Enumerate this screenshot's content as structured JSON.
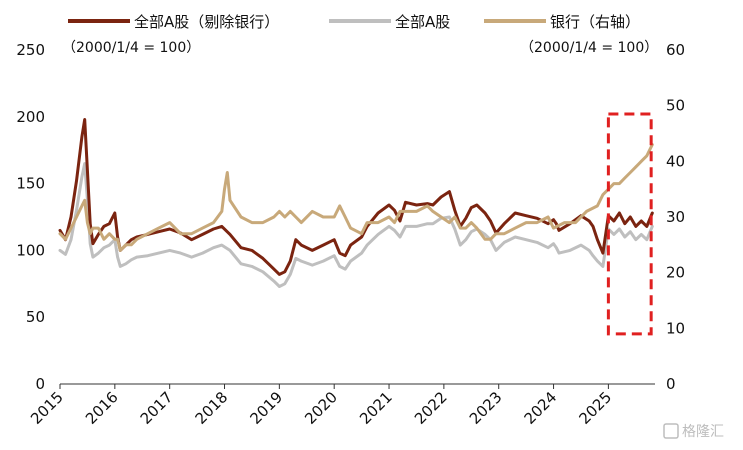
{
  "chart_data": {
    "type": "line",
    "legend": [
      {
        "label": "全部A股（剔除银行）",
        "color": "#7b2410",
        "series": "ex_bank"
      },
      {
        "label": "全部A股",
        "color": "#bfbfbf",
        "series": "all_a"
      },
      {
        "label": "银行（右轴）",
        "color": "#c8a97a",
        "series": "bank"
      }
    ],
    "left_axis": {
      "note": "（2000/1/4 = 100）",
      "ticks": [
        0,
        50,
        100,
        150,
        200,
        250
      ],
      "range": [
        0,
        250
      ]
    },
    "right_axis": {
      "note": "（2000/1/4 = 100）",
      "ticks": [
        0,
        10,
        20,
        30,
        40,
        50,
        60
      ],
      "range": [
        0,
        60
      ]
    },
    "x_axis": {
      "range": [
        2015.0,
        2025.85
      ],
      "ticks": [
        "2015",
        "2016",
        "2017",
        "2018",
        "2019",
        "2020",
        "2021",
        "2022",
        "2023",
        "2024",
        "2025"
      ]
    },
    "highlight": {
      "x_start": 2025.0,
      "x_end": 2025.78,
      "y_start_right": 9,
      "y_end_right": 48.5,
      "color": "#e02020"
    },
    "series": [
      {
        "name": "全部A股（剔除银行）",
        "key": "ex_bank",
        "axis": "left",
        "color": "#7b2410",
        "x": [
          2015.0,
          2015.1,
          2015.2,
          2015.3,
          2015.4,
          2015.45,
          2015.5,
          2015.55,
          2015.6,
          2015.7,
          2015.8,
          2015.9,
          2016.0,
          2016.05,
          2016.1,
          2016.2,
          2016.3,
          2016.4,
          2016.6,
          2016.8,
          2017.0,
          2017.2,
          2017.4,
          2017.6,
          2017.8,
          2017.95,
          2018.1,
          2018.3,
          2018.5,
          2018.7,
          2018.9,
          2019.0,
          2019.1,
          2019.2,
          2019.3,
          2019.4,
          2019.6,
          2019.8,
          2020.0,
          2020.1,
          2020.2,
          2020.3,
          2020.5,
          2020.6,
          2020.8,
          2021.0,
          2021.1,
          2021.2,
          2021.3,
          2021.5,
          2021.7,
          2021.8,
          2021.95,
          2022.1,
          2022.2,
          2022.3,
          2022.4,
          2022.5,
          2022.6,
          2022.75,
          2022.85,
          2022.95,
          2023.1,
          2023.3,
          2023.5,
          2023.7,
          2023.9,
          2024.0,
          2024.05,
          2024.1,
          2024.3,
          2024.5,
          2024.65,
          2024.72,
          2024.8,
          2024.9,
          2025.0,
          2025.1,
          2025.2,
          2025.3,
          2025.4,
          2025.5,
          2025.6,
          2025.7,
          2025.8
        ],
        "y": [
          115,
          108,
          125,
          152,
          185,
          198,
          160,
          120,
          105,
          112,
          118,
          120,
          128,
          110,
          100,
          104,
          108,
          110,
          112,
          114,
          116,
          113,
          108,
          112,
          116,
          118,
          112,
          102,
          100,
          94,
          86,
          82,
          84,
          92,
          108,
          104,
          100,
          104,
          108,
          98,
          96,
          104,
          110,
          118,
          128,
          134,
          130,
          122,
          136,
          134,
          135,
          134,
          140,
          144,
          130,
          118,
          124,
          132,
          134,
          128,
          122,
          113,
          120,
          128,
          126,
          124,
          120,
          123,
          120,
          115,
          120,
          126,
          122,
          118,
          108,
          98,
          126,
          122,
          128,
          120,
          125,
          118,
          122,
          118,
          128
        ]
      },
      {
        "name": "全部A股",
        "key": "all_a",
        "axis": "left",
        "color": "#bfbfbf",
        "x": [
          2015.0,
          2015.1,
          2015.2,
          2015.3,
          2015.4,
          2015.45,
          2015.5,
          2015.55,
          2015.6,
          2015.7,
          2015.8,
          2015.9,
          2016.0,
          2016.05,
          2016.1,
          2016.2,
          2016.3,
          2016.4,
          2016.6,
          2016.8,
          2017.0,
          2017.2,
          2017.4,
          2017.6,
          2017.8,
          2017.95,
          2018.1,
          2018.3,
          2018.5,
          2018.7,
          2018.9,
          2019.0,
          2019.1,
          2019.2,
          2019.3,
          2019.4,
          2019.6,
          2019.8,
          2020.0,
          2020.1,
          2020.2,
          2020.3,
          2020.5,
          2020.6,
          2020.8,
          2021.0,
          2021.1,
          2021.2,
          2021.3,
          2021.5,
          2021.7,
          2021.8,
          2021.95,
          2022.1,
          2022.2,
          2022.3,
          2022.4,
          2022.5,
          2022.6,
          2022.75,
          2022.85,
          2022.95,
          2023.1,
          2023.3,
          2023.5,
          2023.7,
          2023.9,
          2024.0,
          2024.05,
          2024.1,
          2024.3,
          2024.5,
          2024.65,
          2024.72,
          2024.8,
          2024.9,
          2025.0,
          2025.1,
          2025.2,
          2025.3,
          2025.4,
          2025.5,
          2025.6,
          2025.7,
          2025.8
        ],
        "y": [
          100,
          97,
          108,
          130,
          155,
          165,
          138,
          105,
          95,
          98,
          102,
          104,
          108,
          95,
          88,
          90,
          93,
          95,
          96,
          98,
          100,
          98,
          95,
          98,
          102,
          104,
          100,
          90,
          88,
          84,
          77,
          73,
          75,
          82,
          94,
          92,
          89,
          92,
          96,
          88,
          86,
          92,
          98,
          104,
          112,
          118,
          115,
          110,
          118,
          118,
          120,
          120,
          124,
          125,
          116,
          104,
          108,
          114,
          116,
          112,
          108,
          100,
          106,
          110,
          108,
          106,
          102,
          105,
          102,
          98,
          100,
          104,
          100,
          96,
          92,
          88,
          116,
          112,
          116,
          110,
          114,
          108,
          112,
          108,
          118
        ]
      },
      {
        "name": "银行（右轴）",
        "key": "bank",
        "axis": "right",
        "color": "#c8a97a",
        "x": [
          2015.0,
          2015.1,
          2015.2,
          2015.3,
          2015.4,
          2015.45,
          2015.5,
          2015.55,
          2015.6,
          2015.7,
          2015.8,
          2015.9,
          2016.0,
          2016.05,
          2016.1,
          2016.2,
          2016.3,
          2016.4,
          2016.6,
          2016.8,
          2017.0,
          2017.2,
          2017.4,
          2017.6,
          2017.8,
          2017.95,
          2018.0,
          2018.05,
          2018.1,
          2018.3,
          2018.5,
          2018.7,
          2018.9,
          2019.0,
          2019.1,
          2019.2,
          2019.3,
          2019.4,
          2019.6,
          2019.8,
          2020.0,
          2020.1,
          2020.2,
          2020.3,
          2020.5,
          2020.6,
          2020.8,
          2021.0,
          2021.1,
          2021.2,
          2021.3,
          2021.5,
          2021.7,
          2021.8,
          2021.95,
          2022.1,
          2022.2,
          2022.3,
          2022.4,
          2022.5,
          2022.6,
          2022.75,
          2022.85,
          2022.95,
          2023.1,
          2023.3,
          2023.5,
          2023.7,
          2023.9,
          2024.0,
          2024.2,
          2024.4,
          2024.6,
          2024.8,
          2024.9,
          2025.0,
          2025.1,
          2025.2,
          2025.3,
          2025.4,
          2025.5,
          2025.6,
          2025.7,
          2025.8
        ],
        "y": [
          27,
          26,
          28,
          30,
          32,
          33,
          29,
          27,
          28,
          28,
          26,
          27,
          26,
          26,
          24,
          25,
          25,
          26,
          27,
          28,
          29,
          27,
          27,
          28,
          29,
          31,
          35,
          38,
          33,
          30,
          29,
          29,
          30,
          31,
          30,
          31,
          30,
          29,
          31,
          30,
          30,
          32,
          30,
          28,
          27,
          29,
          29,
          30,
          29,
          31,
          31,
          31,
          32,
          31,
          30,
          29,
          30,
          28,
          28,
          29,
          28,
          26,
          26,
          27,
          27,
          28,
          29,
          29,
          30,
          28,
          29,
          29,
          31,
          32,
          34,
          35,
          36,
          36,
          37,
          38,
          39,
          40,
          41,
          43
        ]
      }
    ]
  },
  "watermark": "格隆汇"
}
